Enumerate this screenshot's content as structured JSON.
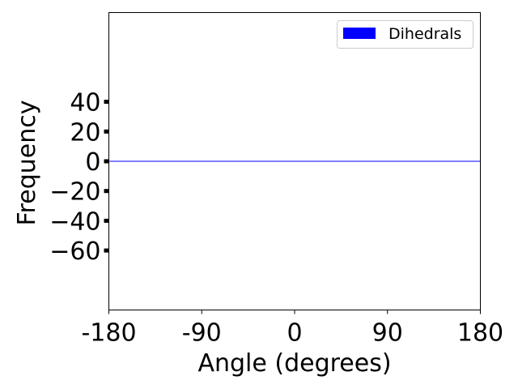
{
  "chart_data": {
    "type": "bar",
    "xlabel": "Angle (degrees)",
    "ylabel": "Frequency",
    "xlim": [
      -180,
      180
    ],
    "ylim": [
      -100,
      100
    ],
    "xticks": [
      {
        "value": -180,
        "label": "-180"
      },
      {
        "value": -90,
        "label": "-90"
      },
      {
        "value": 0,
        "label": "0"
      },
      {
        "value": 90,
        "label": "90"
      },
      {
        "value": 180,
        "label": "180"
      }
    ],
    "yticks": [
      {
        "value": 40,
        "label": "40"
      },
      {
        "value": 20,
        "label": "20"
      },
      {
        "value": 0,
        "label": "0"
      },
      {
        "value": -20,
        "label": "−20"
      },
      {
        "value": -40,
        "label": "−40"
      },
      {
        "value": -60,
        "label": "−60"
      }
    ],
    "series": [
      {
        "name": "Dihedrals",
        "color": "#0000ff",
        "range": [
          -180,
          180
        ],
        "values": 0
      }
    ],
    "legend": {
      "placement": "top-right",
      "entries": [
        "Dihedrals"
      ]
    },
    "grid": false
  }
}
